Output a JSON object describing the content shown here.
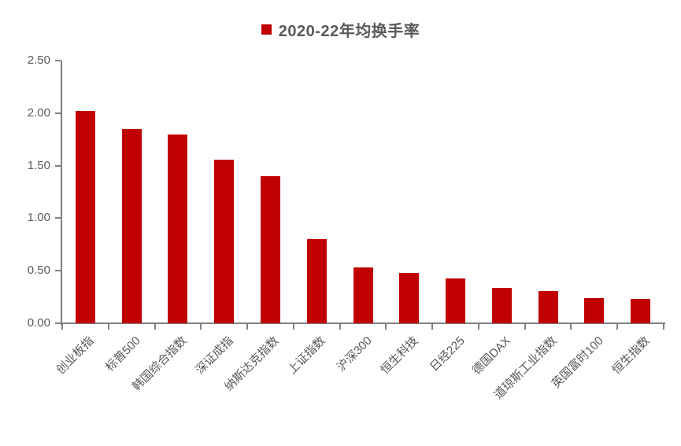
{
  "legend": {
    "label": "2020-22年均换手率",
    "marker_color": "#C00000"
  },
  "chart_data": {
    "type": "bar",
    "title": "2020-22年均换手率",
    "series_name": "2020-22年均换手率",
    "categories": [
      "创业板指",
      "标普500",
      "韩国综合指数",
      "深证成指",
      "纳斯达克指数",
      "上证指数",
      "沪深300",
      "恒生科技",
      "日经225",
      "德国DAX",
      "道琼斯工业指数",
      "英国富时100",
      "恒生指数"
    ],
    "values": [
      2.02,
      1.85,
      1.8,
      1.56,
      1.4,
      0.8,
      0.53,
      0.48,
      0.43,
      0.34,
      0.31,
      0.24,
      0.23
    ],
    "xlabel": "",
    "ylabel": "",
    "ylim": [
      0,
      2.5
    ],
    "ytick_step": 0.5,
    "ytick_labels": [
      "0.00",
      "0.50",
      "1.00",
      "1.50",
      "2.00",
      "2.50"
    ],
    "grid": false,
    "legend_position": "top-center",
    "bar_color": "#C00000",
    "axis_color": "#808080",
    "text_color": "#595959"
  }
}
